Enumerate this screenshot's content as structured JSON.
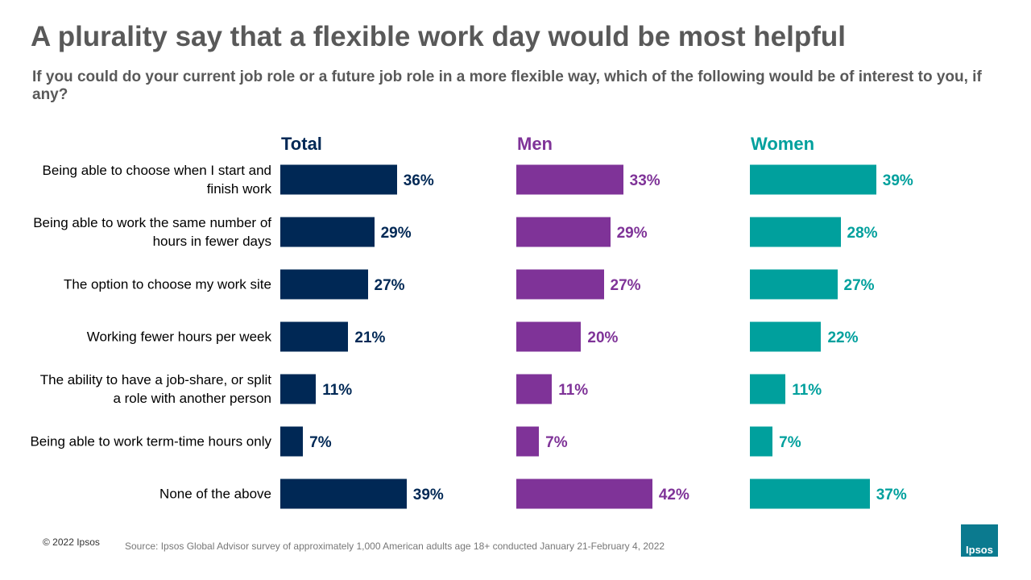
{
  "title": "A plurality say that a flexible work day would be most helpful",
  "subtitle": "If you could do your current job role or a future job role in a more flexible way, which of the following would be of interest to you, if any?",
  "chart_data": {
    "type": "bar",
    "orientation": "horizontal",
    "categories": [
      "Being able to choose when I start and finish work",
      "Being able to work the same number of hours in fewer days",
      "The option to choose my work site",
      "Working fewer hours per week",
      "The ability to have a job-share, or split a role with another person",
      "Being able to work term-time hours only",
      "None of the above"
    ],
    "series": [
      {
        "name": "Total",
        "color": "#002855",
        "values": [
          36,
          29,
          27,
          21,
          11,
          7,
          39
        ],
        "value_labels": [
          "36%",
          "29%",
          "27%",
          "21%",
          "11%",
          "7%",
          "39%"
        ]
      },
      {
        "name": "Men",
        "color": "#7f3398",
        "values": [
          33,
          29,
          27,
          20,
          11,
          7,
          42
        ],
        "value_labels": [
          "33%",
          "29%",
          "27%",
          "20%",
          "11%",
          "7%",
          "42%"
        ]
      },
      {
        "name": "Women",
        "color": "#00a09d",
        "values": [
          39,
          28,
          27,
          22,
          11,
          7,
          37
        ],
        "value_labels": [
          "39%",
          "28%",
          "27%",
          "22%",
          "11%",
          "7%",
          "37%"
        ]
      }
    ]
  },
  "footer": {
    "copyright": "© 2022 Ipsos",
    "source": "Source: Ipsos Global Advisor survey of approximately 1,000 American adults age 18+ conducted January 21-February 4, 2022",
    "logo": "Ipsos"
  }
}
